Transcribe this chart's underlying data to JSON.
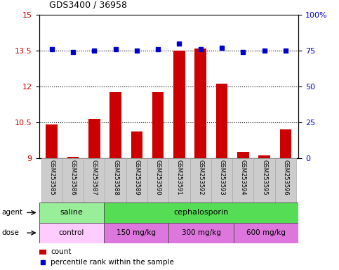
{
  "title": "GDS3400 / 36958",
  "samples": [
    "GSM253585",
    "GSM253586",
    "GSM253587",
    "GSM253588",
    "GSM253589",
    "GSM253590",
    "GSM253591",
    "GSM253592",
    "GSM253593",
    "GSM253594",
    "GSM253595",
    "GSM253596"
  ],
  "count_values": [
    10.4,
    9.05,
    10.65,
    11.75,
    10.1,
    11.75,
    13.5,
    13.6,
    12.1,
    9.25,
    9.1,
    10.2
  ],
  "percentile_values": [
    76,
    74,
    75,
    76,
    75,
    76,
    80,
    76,
    77,
    74,
    75,
    75
  ],
  "ylim_left": [
    9,
    15
  ],
  "ylim_right": [
    0,
    100
  ],
  "yticks_left": [
    9,
    10.5,
    12,
    13.5,
    15
  ],
  "yticks_right": [
    0,
    25,
    50,
    75,
    100
  ],
  "bar_color": "#cc0000",
  "dot_color": "#0000cc",
  "grid_color": "#000000",
  "bg_color": "#ffffff",
  "tick_label_color_left": "#cc0000",
  "tick_label_color_right": "#0000cc",
  "agent_row": [
    {
      "label": "saline",
      "start": 0,
      "end": 3,
      "color": "#99ee99"
    },
    {
      "label": "cephalosporin",
      "start": 3,
      "end": 12,
      "color": "#55dd55"
    }
  ],
  "dose_row": [
    {
      "label": "control",
      "start": 0,
      "end": 3,
      "color": "#ffccff"
    },
    {
      "label": "150 mg/kg",
      "start": 3,
      "end": 6,
      "color": "#dd77dd"
    },
    {
      "label": "300 mg/kg",
      "start": 6,
      "end": 9,
      "color": "#dd77dd"
    },
    {
      "label": "600 mg/kg",
      "start": 9,
      "end": 12,
      "color": "#dd77dd"
    }
  ],
  "agent_label": "agent",
  "dose_label": "dose",
  "legend_count_label": "count",
  "legend_pct_label": "percentile rank within the sample",
  "xticklabel_bg": "#cccccc",
  "bar_width": 0.55,
  "dot_size": 5,
  "grid_yticks": [
    10.5,
    12,
    13.5
  ]
}
